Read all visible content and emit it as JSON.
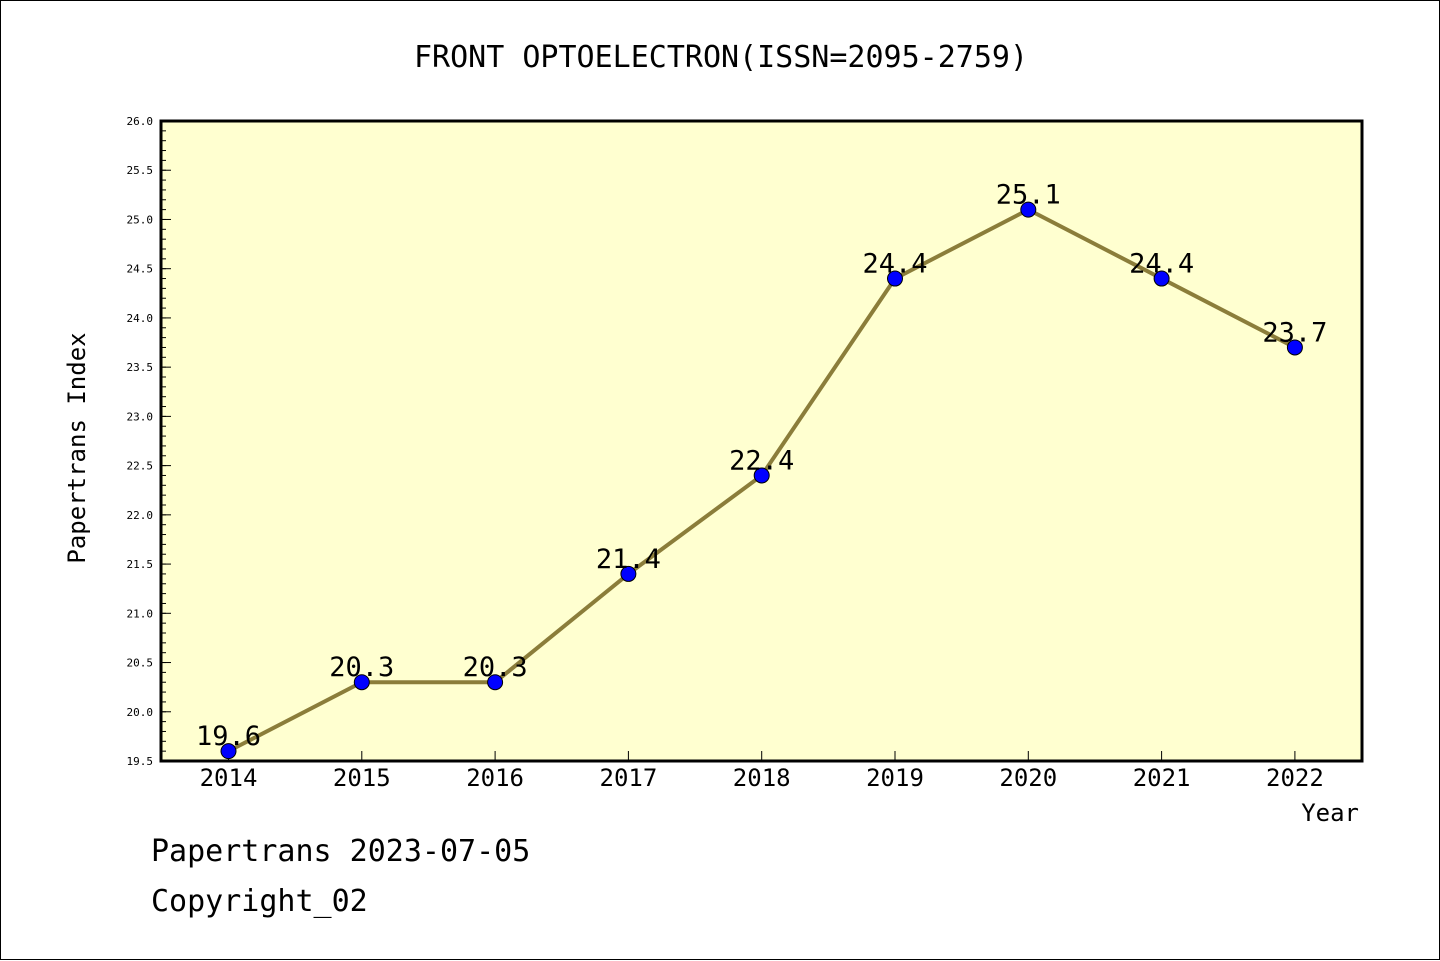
{
  "chart_data": {
    "type": "line",
    "title": "FRONT OPTOELECTRON(ISSN=2095-2759)",
    "xlabel": "Year",
    "ylabel": "Papertrans Index",
    "categories": [
      "2014",
      "2015",
      "2016",
      "2017",
      "2018",
      "2019",
      "2020",
      "2021",
      "2022"
    ],
    "values": [
      19.6,
      20.3,
      20.3,
      21.4,
      22.4,
      24.4,
      25.1,
      24.4,
      23.7
    ],
    "value_labels": [
      "19.6",
      "20.3",
      "20.3",
      "21.4",
      "22.4",
      "24.4",
      "25.1",
      "24.4",
      "23.7"
    ],
    "ylim": [
      19.5,
      26.0
    ],
    "y_ticks": [
      "19.5",
      "20.0",
      "20.5",
      "21.0",
      "21.5",
      "22.0",
      "22.5",
      "23.0",
      "23.5",
      "24.0",
      "24.5",
      "25.0",
      "25.5",
      "26.0"
    ],
    "grid": false,
    "colors": {
      "plot_background": "#ffffd0",
      "line": "#8b7d3a",
      "marker": "#0000ff"
    }
  },
  "footer": {
    "source": "Papertrans 2023-07-05",
    "copyright": "Copyright_02"
  }
}
